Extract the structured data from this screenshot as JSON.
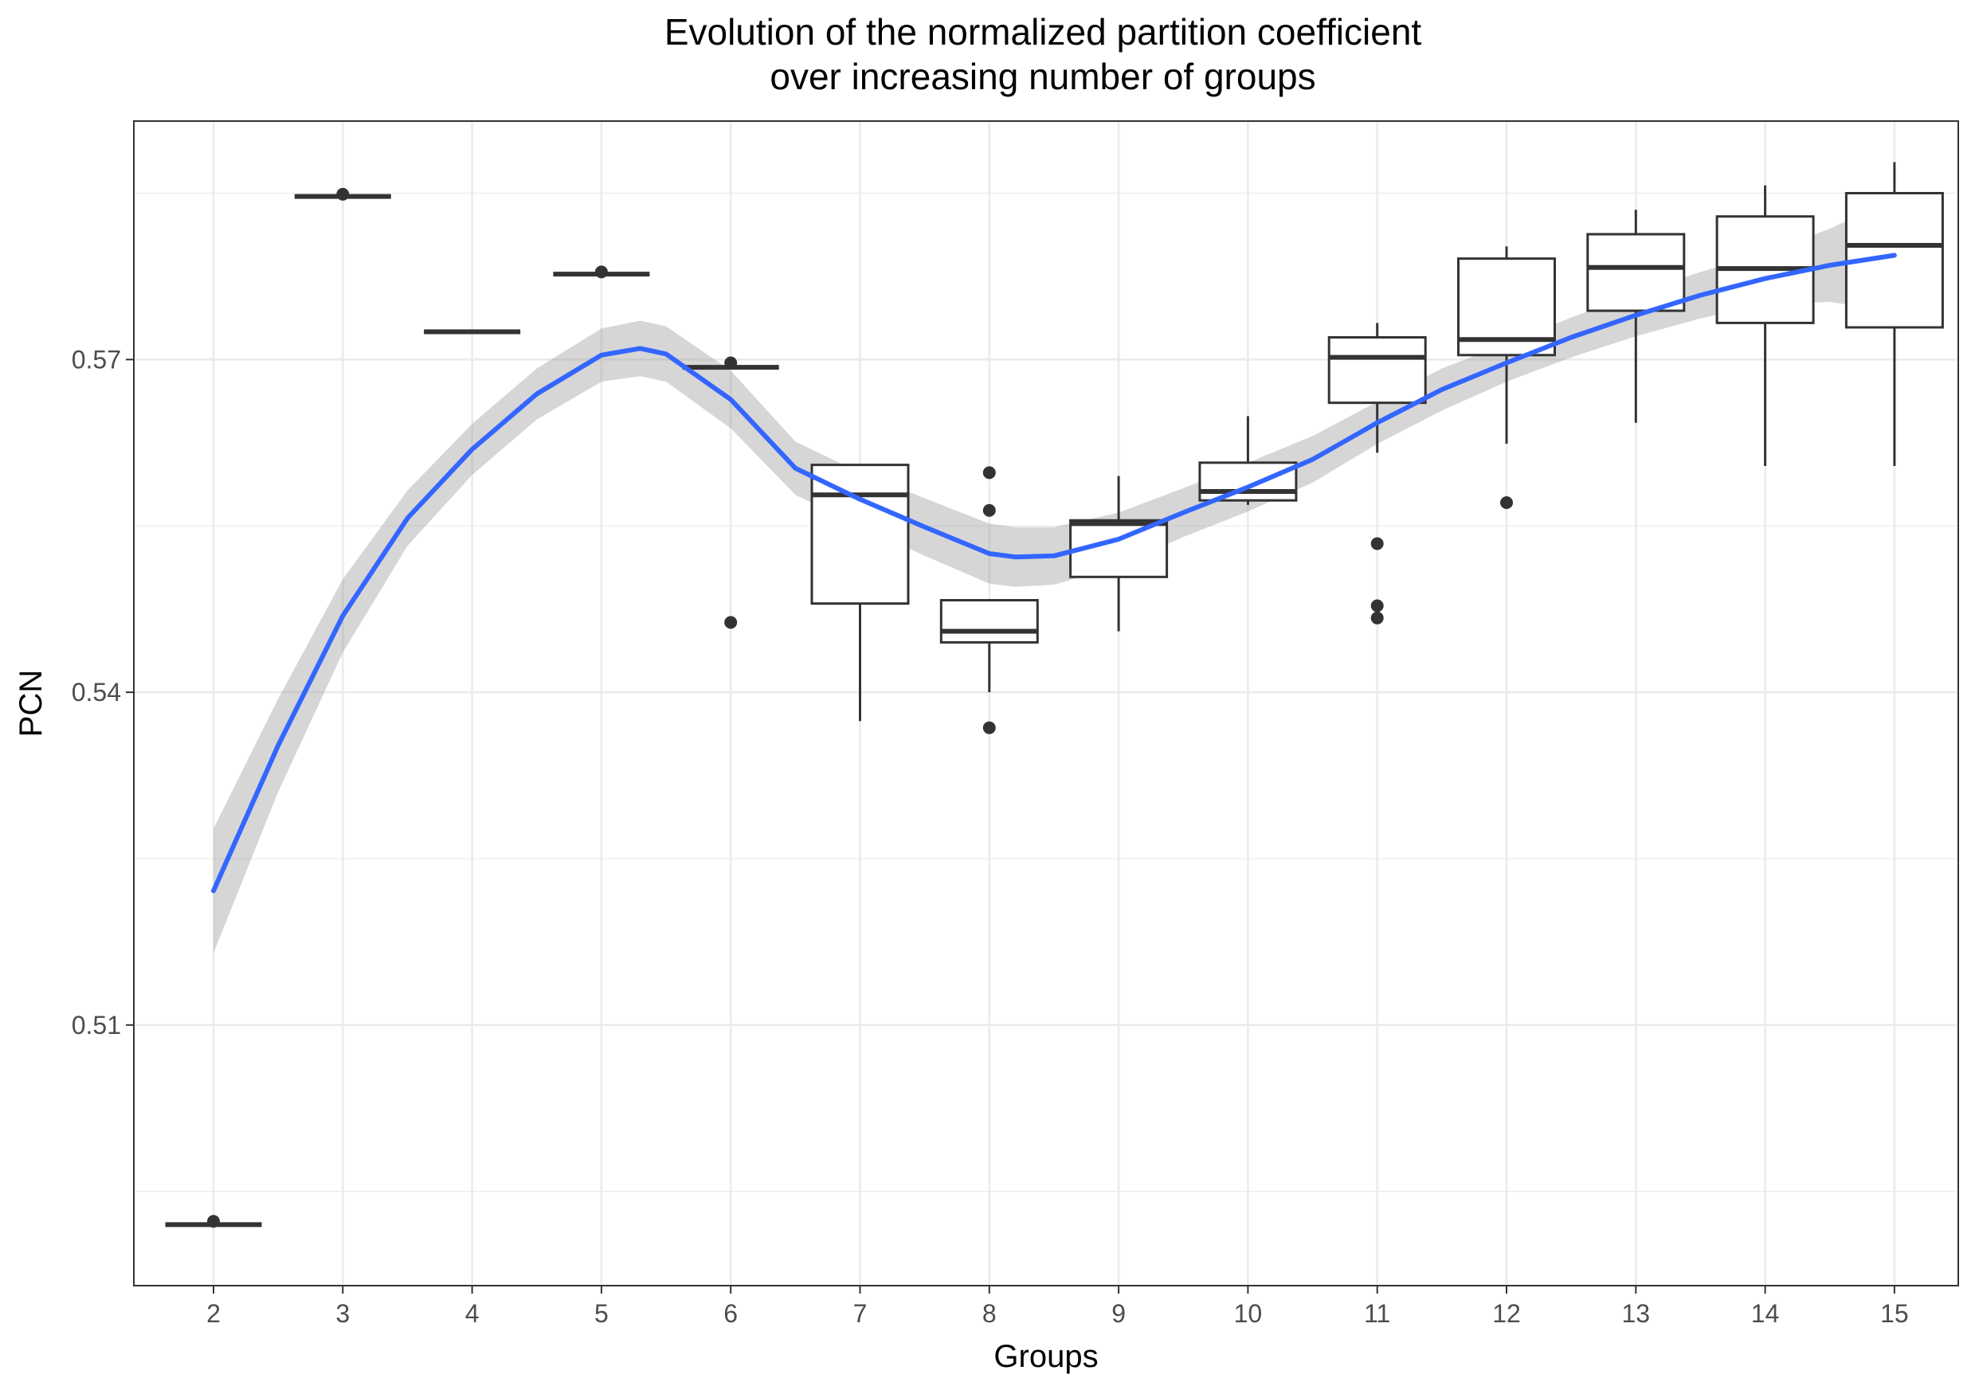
{
  "chart_data": {
    "type": "boxplot",
    "title": [
      "Evolution of the normalized partition coefficient",
      "over increasing number of groups"
    ],
    "xlabel": "Groups",
    "ylabel": "PCN",
    "categories": [
      "2",
      "3",
      "4",
      "5",
      "6",
      "7",
      "8",
      "9",
      "10",
      "11",
      "12",
      "13",
      "14",
      "15"
    ],
    "yticks": [
      0.51,
      0.54,
      0.57
    ],
    "ytick_labels": [
      "0.51",
      "0.54",
      "0.57"
    ],
    "ylim": [
      0.4865,
      0.5915
    ],
    "grid": true,
    "boxes": [
      {
        "group": "2",
        "whisker_low": 0.492,
        "q1": 0.492,
        "median": 0.492,
        "q3": 0.492,
        "whisker_high": 0.492,
        "outliers": [
          0.4923
        ]
      },
      {
        "group": "3",
        "whisker_low": 0.5847,
        "q1": 0.5847,
        "median": 0.5847,
        "q3": 0.5847,
        "whisker_high": 0.5847,
        "outliers": [
          0.5849
        ]
      },
      {
        "group": "4",
        "whisker_low": 0.5725,
        "q1": 0.5725,
        "median": 0.5725,
        "q3": 0.5725,
        "whisker_high": 0.5725,
        "outliers": []
      },
      {
        "group": "5",
        "whisker_low": 0.5777,
        "q1": 0.5777,
        "median": 0.5777,
        "q3": 0.5777,
        "whisker_high": 0.5777,
        "outliers": [
          0.5779
        ]
      },
      {
        "group": "6",
        "whisker_low": 0.5693,
        "q1": 0.5693,
        "median": 0.5693,
        "q3": 0.5693,
        "whisker_high": 0.5693,
        "outliers": [
          0.5697,
          0.5463
        ]
      },
      {
        "group": "7",
        "whisker_low": 0.5374,
        "q1": 0.548,
        "median": 0.5578,
        "q3": 0.5605,
        "whisker_high": 0.5605,
        "outliers": []
      },
      {
        "group": "8",
        "whisker_low": 0.54,
        "q1": 0.5445,
        "median": 0.5455,
        "q3": 0.5483,
        "whisker_high": 0.5483,
        "outliers": [
          0.5598,
          0.5564,
          0.5368
        ]
      },
      {
        "group": "9",
        "whisker_low": 0.5455,
        "q1": 0.5504,
        "median": 0.5552,
        "q3": 0.5555,
        "whisker_high": 0.5595,
        "outliers": []
      },
      {
        "group": "10",
        "whisker_low": 0.5569,
        "q1": 0.5573,
        "median": 0.5581,
        "q3": 0.5607,
        "whisker_high": 0.5649,
        "outliers": []
      },
      {
        "group": "11",
        "whisker_low": 0.5616,
        "q1": 0.5661,
        "median": 0.5702,
        "q3": 0.572,
        "whisker_high": 0.5733,
        "outliers": [
          0.5534,
          0.5478,
          0.5467
        ]
      },
      {
        "group": "12",
        "whisker_low": 0.5624,
        "q1": 0.5704,
        "median": 0.5718,
        "q3": 0.5791,
        "whisker_high": 0.5802,
        "outliers": [
          0.5571
        ]
      },
      {
        "group": "13",
        "whisker_low": 0.5643,
        "q1": 0.5744,
        "median": 0.5783,
        "q3": 0.5813,
        "whisker_high": 0.5835,
        "outliers": []
      },
      {
        "group": "14",
        "whisker_low": 0.5604,
        "q1": 0.5733,
        "median": 0.5782,
        "q3": 0.5829,
        "whisker_high": 0.5857,
        "outliers": []
      },
      {
        "group": "15",
        "whisker_low": 0.5604,
        "q1": 0.5729,
        "median": 0.5803,
        "q3": 0.585,
        "whisker_high": 0.5878,
        "outliers": []
      }
    ],
    "smooth": {
      "color": "#3366ff",
      "band_color": "#999999",
      "x": [
        2,
        2.5,
        3,
        3.5,
        4,
        4.5,
        5,
        5.3,
        5.5,
        6,
        6.5,
        7,
        7.5,
        8,
        8.2,
        8.5,
        9,
        9.5,
        10,
        10.5,
        11,
        11.5,
        12,
        12.5,
        13,
        13.5,
        14,
        14.5,
        15
      ],
      "y": [
        0.5221,
        0.5352,
        0.5469,
        0.5557,
        0.5619,
        0.5669,
        0.5704,
        0.571,
        0.5705,
        0.5664,
        0.5602,
        0.5574,
        0.5549,
        0.5525,
        0.5522,
        0.5523,
        0.5538,
        0.5562,
        0.5585,
        0.561,
        0.5643,
        0.5673,
        0.5697,
        0.572,
        0.574,
        0.5758,
        0.5773,
        0.5785,
        0.5794
      ],
      "lower": [
        0.5165,
        0.531,
        0.5436,
        0.5532,
        0.5596,
        0.5646,
        0.568,
        0.5685,
        0.568,
        0.5638,
        0.5578,
        0.555,
        0.5523,
        0.5498,
        0.5495,
        0.5497,
        0.5514,
        0.554,
        0.5563,
        0.5589,
        0.5624,
        0.5654,
        0.568,
        0.5702,
        0.5721,
        0.5737,
        0.575,
        0.5752,
        0.5743
      ],
      "upper": [
        0.5277,
        0.5394,
        0.5502,
        0.5582,
        0.5642,
        0.5692,
        0.5728,
        0.5735,
        0.573,
        0.569,
        0.5626,
        0.5598,
        0.5575,
        0.5552,
        0.5549,
        0.5549,
        0.5562,
        0.5584,
        0.5607,
        0.5631,
        0.5662,
        0.5692,
        0.5714,
        0.5738,
        0.5759,
        0.5779,
        0.5796,
        0.5818,
        0.5845
      ]
    }
  }
}
